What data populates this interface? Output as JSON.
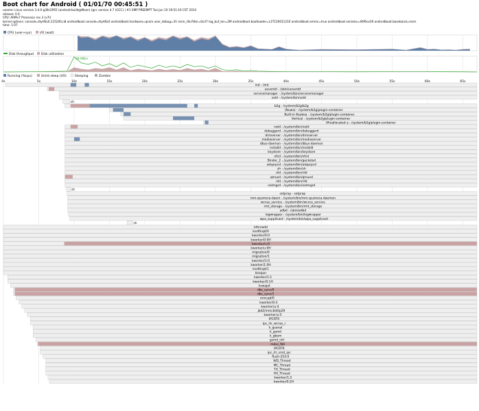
{
  "header": {
    "title": "Boot chart for Android ( 01/01/70 00:45:51 )",
    "lines": [
      "uname: Linux version 3.4.0-g38c2955 (android-build@Moon) (gcc version 4.7 (GCC) ) #1 SMP PREEMPT Tue Jun 10 19:51:16 CST 2014",
      "release: 0.0",
      "CPU: ARMv7 Processor rev 3 (v7l)",
      "kernel options: console=ttyHSL0,115200,n8 androidboot.console=ttyHSL0 androidboot.hardware=qcom user_debug=31 msm_rtb.filter=0x37 log_buf_len=2M androidboot.bootloader=L1TC20011210 androidboot.emmc=true androidboot.serialno=94f6ce29 androidboot.baseband=msm",
      "time: 1:07"
    ]
  },
  "legends": {
    "cpu": [
      "CPU (user+sys)",
      "I/O (wait)"
    ],
    "disk": [
      "Disk throughput",
      "Disk utilization"
    ],
    "states": [
      "Running (%cpu)",
      "Unint.sleep (I/O)",
      "Sleeping",
      "Zombie"
    ]
  },
  "colors": {
    "cpu": "#5f7fa6",
    "io": "#c9a8a8",
    "throughput": "#2da52d",
    "utilization": "#c8a8a8",
    "running": "#5f7fa6",
    "uninterruptible": "#c9a3a3",
    "sleeping": "#efefef",
    "zombie": "#aaaaaa",
    "process_border": "#bdbdbd",
    "grid": "#d6d6d6"
  },
  "chart_data": {
    "type": "bootchart",
    "time_unit": "s",
    "x_ticks": [
      "0s",
      "5s",
      "10s",
      "15s",
      "20s",
      "25s",
      "30s",
      "35s",
      "40s",
      "45s",
      "50s",
      "55s",
      "60s",
      "65s"
    ],
    "xlim": [
      0,
      67
    ],
    "cpu": {
      "t": [
        10.5,
        11,
        12,
        13,
        14,
        15,
        16,
        17,
        18,
        19,
        20,
        21,
        22,
        23,
        24,
        25,
        26,
        27,
        28,
        29,
        30,
        31,
        32,
        33,
        34,
        35,
        36,
        37,
        38,
        39,
        40,
        41,
        42,
        45,
        50,
        55,
        57,
        58,
        59,
        60,
        61,
        62,
        63,
        64,
        65,
        66
      ],
      "user_sys": [
        100,
        85,
        90,
        70,
        95,
        80,
        100,
        75,
        90,
        65,
        85,
        60,
        80,
        70,
        95,
        75,
        90,
        60,
        80,
        70,
        95,
        40,
        20,
        25,
        18,
        30,
        12,
        10,
        8,
        25,
        10,
        6,
        4,
        8,
        6,
        10,
        4,
        12,
        20,
        8,
        10,
        5,
        6,
        4,
        8,
        10
      ],
      "io_wait": [
        100,
        95,
        95,
        80,
        100,
        90,
        100,
        85,
        95,
        75,
        90,
        70,
        90,
        80,
        100,
        85,
        95,
        70,
        90,
        80,
        100,
        45,
        25,
        30,
        22,
        35,
        15,
        12,
        10,
        28,
        12,
        8,
        5,
        10,
        8,
        12,
        5,
        14,
        22,
        10,
        12,
        6,
        8,
        5,
        10,
        12
      ]
    },
    "disk": {
      "peak_label": "69 MB/s",
      "t": [
        0,
        5,
        9,
        10,
        11,
        12,
        13,
        14,
        15,
        16,
        17,
        18,
        19,
        20,
        21,
        22,
        23,
        24,
        25,
        26,
        27,
        28,
        29,
        30,
        31,
        32,
        33,
        34,
        35,
        36,
        38,
        40,
        45,
        50,
        55,
        60,
        65,
        67
      ],
      "throughput": [
        0,
        2,
        5,
        100,
        60,
        50,
        65,
        40,
        55,
        35,
        60,
        30,
        45,
        35,
        25,
        45,
        30,
        40,
        28,
        50,
        35,
        40,
        25,
        40,
        15,
        10,
        15,
        5,
        10,
        5,
        3,
        2,
        2,
        1,
        2,
        2,
        1,
        0
      ],
      "utilization": [
        0,
        1,
        3,
        30,
        20,
        15,
        25,
        20,
        30,
        15,
        30,
        10,
        20,
        15,
        10,
        20,
        12,
        18,
        12,
        25,
        15,
        20,
        10,
        25,
        5,
        5,
        8,
        2,
        5,
        2,
        1,
        1,
        1,
        1,
        1,
        1,
        0,
        0
      ]
    },
    "processes": [
      {
        "label": "init - /init",
        "start": 0.3,
        "end": 67,
        "run": [
          [
            9.5,
            10.3
          ],
          [
            11.5,
            12.1
          ]
        ]
      },
      {
        "label": "ueventd - /sbin/ueventd",
        "start": 6.2,
        "end": 67,
        "run": [],
        "io": [
          [
            6.4,
            7.2
          ]
        ]
      },
      {
        "label": "servicemanager - /system/bin/servicemanager",
        "start": 7.9,
        "end": 67,
        "run": []
      },
      {
        "label": "vold - /system/bin/vold",
        "start": 7.9,
        "end": 67,
        "run": []
      },
      {
        "label": "sh",
        "start": 8.4,
        "end": 9.4,
        "run": []
      },
      {
        "label": "b2g - /system/b2g/b2g",
        "start": 8.7,
        "end": 67,
        "run": [
          [
            12.2,
            26
          ],
          [
            27,
            27.5
          ]
        ],
        "io": [
          [
            9.5,
            12.2
          ]
        ]
      },
      {
        "label": "(Nuwa) - /system/b2g/plugin-container",
        "start": 15,
        "end": 67,
        "run": [
          [
            15.5,
            17
          ]
        ]
      },
      {
        "label": "Built-in Keyboa - /system/b2g/plugin-container",
        "start": 16.6,
        "end": 67,
        "run": [
          [
            17,
            18
          ]
        ]
      },
      {
        "label": "Vertical - /system/b2g/plugin-container",
        "start": 17,
        "end": 67,
        "run": [
          [
            24,
            27
          ]
        ]
      },
      {
        "label": "(Preallocated a - /system/b2g/plugin-container",
        "start": 28.3,
        "end": 67,
        "run": [
          [
            28.5,
            29
          ]
        ]
      },
      {
        "label": "netd - /system/bin/netd",
        "start": 8.7,
        "end": 67,
        "run": [],
        "io": [
          [
            9.5,
            10.5
          ]
        ]
      },
      {
        "label": "debuggerd - /system/bin/debuggerd",
        "start": 8.7,
        "end": 67,
        "run": []
      },
      {
        "label": "drmserver - /system/bin/drmserver",
        "start": 8.7,
        "end": 67,
        "run": []
      },
      {
        "label": "mediaserver - /system/bin/mediaserver",
        "start": 8.7,
        "end": 67,
        "run": [
          [
            10,
            10.8
          ]
        ]
      },
      {
        "label": "dbus-daemon - /system/bin/dbus-daemon",
        "start": 8.7,
        "end": 67,
        "run": []
      },
      {
        "label": "installd - /system/bin/installd",
        "start": 8.7,
        "end": 67,
        "run": []
      },
      {
        "label": "keystore - /system/bin/keystore",
        "start": 8.7,
        "end": 67,
        "run": []
      },
      {
        "label": "nfcd - /system/bin/nfcd",
        "start": 8.7,
        "end": 67,
        "run": []
      },
      {
        "label": "Binder_2 - /system/bin/geckolsd",
        "start": 8.7,
        "end": 67,
        "run": []
      },
      {
        "label": "adsprpcd - /system/bin/adsprpcd",
        "start": 8.7,
        "end": 67,
        "run": []
      },
      {
        "label": "sh - /system/bin/sh",
        "start": 8.7,
        "end": 67,
        "run": []
      },
      {
        "label": "rild - /system/bin/rild",
        "start": 8.7,
        "end": 67,
        "run": []
      },
      {
        "label": "qmuxd - /system/bin/qmuxd",
        "start": 8.7,
        "end": 67,
        "run": [],
        "io": [
          [
            8.7,
            9.8
          ]
        ]
      },
      {
        "label": "rild - /system/bin/rild",
        "start": 8.7,
        "end": 67,
        "run": []
      },
      {
        "label": "netmgrd - /system/bin/netmgrd",
        "start": 8.7,
        "end": 67,
        "run": []
      },
      {
        "label": "sh",
        "start": 8.9,
        "end": 9.5,
        "run": []
      },
      {
        "label": "setprop - setprop",
        "start": 9,
        "end": 67,
        "run": []
      },
      {
        "label": "mm-qcamera-daem - /system/bin/mm-qcamera-daemon",
        "start": 9.1,
        "end": 67,
        "run": []
      },
      {
        "label": "wcnss_service - /system/bin/wcnss_service",
        "start": 9.1,
        "end": 67,
        "run": []
      },
      {
        "label": "rmt_storage - /system/bin/rmt_storage",
        "start": 9.1,
        "end": 67,
        "run": []
      },
      {
        "label": "adbd - /sbin/adbd",
        "start": 9.1,
        "end": 67,
        "run": []
      },
      {
        "label": "logwrapper - /system/bin/logwrapper",
        "start": 9.2,
        "end": 67,
        "run": []
      },
      {
        "label": "wpa_supplicant - /system/bin/wpa_supplicant",
        "start": 9.4,
        "end": 67,
        "run": []
      },
      {
        "label": "sh",
        "start": 17.5,
        "end": 18.3,
        "run": []
      },
      {
        "label": "kthreadd",
        "start": 0,
        "end": 67,
        "run": []
      },
      {
        "label": "ksoftirqd/0",
        "start": 0,
        "end": 67,
        "run": []
      },
      {
        "label": "kworker/0:0",
        "start": 0,
        "end": 67,
        "run": []
      },
      {
        "label": "kworker/0:0H",
        "start": 0,
        "end": 67,
        "run": []
      },
      {
        "label": "kworker/u:0",
        "start": 0,
        "end": 67,
        "run": [],
        "io": [
          [
            8.6,
            67
          ]
        ]
      },
      {
        "label": "kworker/u:0H",
        "start": 0,
        "end": 67,
        "run": []
      },
      {
        "label": "migration/0",
        "start": 0,
        "end": 67,
        "run": []
      },
      {
        "label": "migration/1",
        "start": 0,
        "end": 67,
        "run": []
      },
      {
        "label": "kworker/1:0",
        "start": 0,
        "end": 67,
        "run": []
      },
      {
        "label": "kworker/1:0H",
        "start": 0,
        "end": 67,
        "run": []
      },
      {
        "label": "ksoftirqd/1",
        "start": 0,
        "end": 67,
        "run": []
      },
      {
        "label": "khelper",
        "start": 0,
        "end": 67,
        "run": []
      },
      {
        "label": "kworker/1:1",
        "start": 0.6,
        "end": 67,
        "run": []
      },
      {
        "label": "kworker/0:1H",
        "start": 0.6,
        "end": 67,
        "run": []
      },
      {
        "label": "kswapd",
        "start": 1,
        "end": 67,
        "run": []
      },
      {
        "label": "dbs_sync/0",
        "start": 1.4,
        "end": 67,
        "run": [],
        "io": [
          [
            1.6,
            67
          ]
        ]
      },
      {
        "label": "dbs_sync/1",
        "start": 1.4,
        "end": 67,
        "run": [],
        "io": [
          [
            1.6,
            67
          ]
        ]
      },
      {
        "label": "mmcqd/0",
        "start": 1.8,
        "end": 67,
        "run": []
      },
      {
        "label": "kworker/0:3",
        "start": 2.2,
        "end": 67,
        "run": []
      },
      {
        "label": "kworker/u:4",
        "start": 2.6,
        "end": 67,
        "run": []
      },
      {
        "label": "jbd2/mmcblk0p29",
        "start": 3,
        "end": 67,
        "run": []
      },
      {
        "label": "kworker/u:5",
        "start": 3.4,
        "end": 67,
        "run": []
      },
      {
        "label": "IPCRTR",
        "start": 3.8,
        "end": 67,
        "run": []
      },
      {
        "label": "ipc_rtr_wcnss_r",
        "start": 3.8,
        "end": 67,
        "run": []
      },
      {
        "label": "k_gserial",
        "start": 4.2,
        "end": 67,
        "run": []
      },
      {
        "label": "k_gsmd",
        "start": 4.2,
        "end": 67,
        "run": []
      },
      {
        "label": "k_gbam",
        "start": 4.2,
        "end": 67,
        "run": []
      },
      {
        "label": "gsmd_ctrl",
        "start": 4.6,
        "end": 67,
        "run": []
      },
      {
        "label": "mdss_fb0",
        "start": 4.8,
        "end": 67,
        "run": [],
        "io": [
          [
            4.9,
            67
          ]
        ]
      },
      {
        "label": "IPCRTR",
        "start": 5.2,
        "end": 67,
        "run": []
      },
      {
        "label": "ipc_rtr_smd_ipc",
        "start": 5.2,
        "end": 67,
        "run": []
      },
      {
        "label": "flush-253:0",
        "start": 5.6,
        "end": 67,
        "run": []
      },
      {
        "label": "WD_Thread",
        "start": 6,
        "end": 67,
        "run": []
      },
      {
        "label": "MC_Thread",
        "start": 6,
        "end": 67,
        "run": []
      },
      {
        "label": "TX_Thread",
        "start": 6,
        "end": 67,
        "run": []
      },
      {
        "label": "RX_Thread",
        "start": 6,
        "end": 67,
        "run": []
      },
      {
        "label": "kworker/1:2",
        "start": 6.3,
        "end": 67,
        "run": []
      },
      {
        "label": "kworker/0:2H",
        "start": 6.5,
        "end": 67,
        "run": []
      }
    ]
  }
}
